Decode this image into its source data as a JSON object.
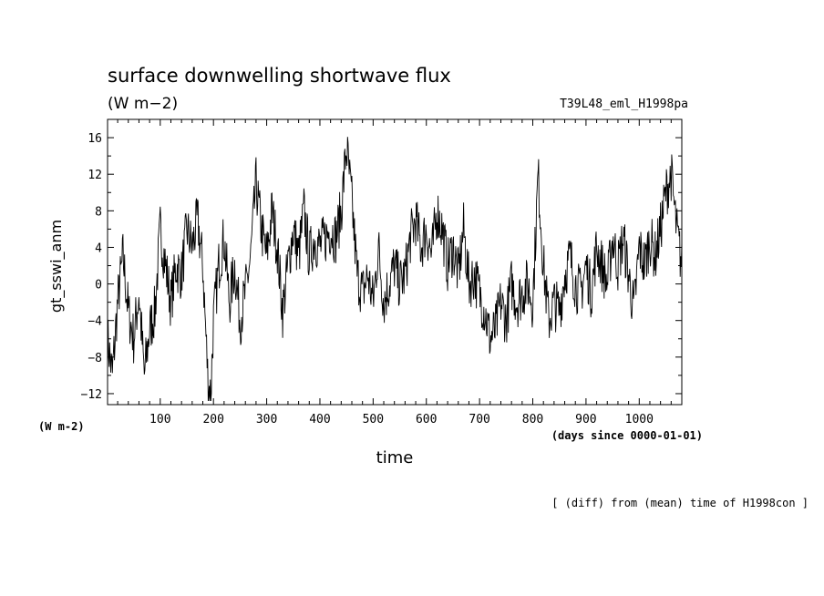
{
  "chart_data": {
    "type": "line",
    "title": "surface downwelling shortwave flux",
    "units": "(W m−2)",
    "experiment": "T39L48_eml_H1998pa",
    "xlabel": "time",
    "x_units": "(days since 0000-01-01)",
    "ylabel": "gt_sswi_anm",
    "y_units": "(W m-2)",
    "note": "[ (diff) from (mean) time of H1998con ]",
    "xlim": [
      1,
      1080
    ],
    "ylim": [
      -13.2,
      18
    ],
    "x_ticks": [
      100,
      200,
      300,
      400,
      500,
      600,
      700,
      800,
      900,
      1000
    ],
    "x_tick_labels": [
      "100",
      "200",
      "300",
      "400",
      "500",
      "600",
      "700",
      "800",
      "900",
      "1000"
    ],
    "y_ticks": [
      -12,
      -8,
      -4,
      0,
      4,
      8,
      12,
      16
    ],
    "y_tick_labels": [
      "−12",
      "−8",
      "−4",
      "0",
      "4",
      "8",
      "12",
      "16"
    ],
    "keypoints": [
      [
        1,
        -6
      ],
      [
        10,
        -10
      ],
      [
        20,
        -2
      ],
      [
        30,
        3
      ],
      [
        40,
        -3
      ],
      [
        50,
        -6
      ],
      [
        60,
        -1
      ],
      [
        70,
        -10
      ],
      [
        80,
        -5
      ],
      [
        90,
        -3
      ],
      [
        100,
        6
      ],
      [
        110,
        2
      ],
      [
        120,
        -2
      ],
      [
        130,
        2
      ],
      [
        140,
        1
      ],
      [
        150,
        6
      ],
      [
        160,
        4
      ],
      [
        170,
        7
      ],
      [
        180,
        2
      ],
      [
        190,
        -11
      ],
      [
        195,
        -12
      ],
      [
        200,
        -4
      ],
      [
        210,
        2
      ],
      [
        220,
        5
      ],
      [
        230,
        -2
      ],
      [
        240,
        2
      ],
      [
        250,
        -4
      ],
      [
        260,
        -1
      ],
      [
        270,
        3
      ],
      [
        280,
        11
      ],
      [
        290,
        6
      ],
      [
        300,
        3
      ],
      [
        310,
        8
      ],
      [
        320,
        4
      ],
      [
        330,
        -3
      ],
      [
        340,
        2
      ],
      [
        350,
        6
      ],
      [
        360,
        3
      ],
      [
        370,
        8
      ],
      [
        380,
        3
      ],
      [
        390,
        5
      ],
      [
        400,
        4
      ],
      [
        410,
        5
      ],
      [
        420,
        6
      ],
      [
        430,
        5
      ],
      [
        440,
        8
      ],
      [
        450,
        15
      ],
      [
        460,
        9
      ],
      [
        470,
        1
      ],
      [
        480,
        -1
      ],
      [
        490,
        1
      ],
      [
        500,
        -2
      ],
      [
        510,
        4
      ],
      [
        520,
        -2
      ],
      [
        530,
        0
      ],
      [
        540,
        2
      ],
      [
        550,
        0
      ],
      [
        560,
        1
      ],
      [
        570,
        5
      ],
      [
        580,
        7
      ],
      [
        590,
        4
      ],
      [
        600,
        6
      ],
      [
        610,
        3
      ],
      [
        620,
        8
      ],
      [
        630,
        6
      ],
      [
        640,
        2
      ],
      [
        650,
        4
      ],
      [
        660,
        1
      ],
      [
        670,
        6
      ],
      [
        680,
        0
      ],
      [
        690,
        1
      ],
      [
        700,
        -1
      ],
      [
        710,
        -3
      ],
      [
        720,
        -6
      ],
      [
        730,
        -5
      ],
      [
        740,
        -2
      ],
      [
        750,
        -4
      ],
      [
        760,
        0
      ],
      [
        770,
        -2
      ],
      [
        780,
        -1
      ],
      [
        790,
        0
      ],
      [
        800,
        -2
      ],
      [
        810,
        12
      ],
      [
        820,
        2
      ],
      [
        830,
        -4
      ],
      [
        840,
        -2
      ],
      [
        850,
        -3
      ],
      [
        860,
        1
      ],
      [
        870,
        3
      ],
      [
        880,
        0
      ],
      [
        890,
        -1
      ],
      [
        900,
        2
      ],
      [
        910,
        -1
      ],
      [
        920,
        4
      ],
      [
        930,
        2
      ],
      [
        940,
        0
      ],
      [
        950,
        5
      ],
      [
        960,
        2
      ],
      [
        970,
        5
      ],
      [
        980,
        1
      ],
      [
        990,
        -3
      ],
      [
        1000,
        4
      ],
      [
        1010,
        2
      ],
      [
        1020,
        5
      ],
      [
        1030,
        3
      ],
      [
        1040,
        6
      ],
      [
        1050,
        10
      ],
      [
        1060,
        12
      ],
      [
        1070,
        6
      ],
      [
        1080,
        2
      ]
    ]
  }
}
